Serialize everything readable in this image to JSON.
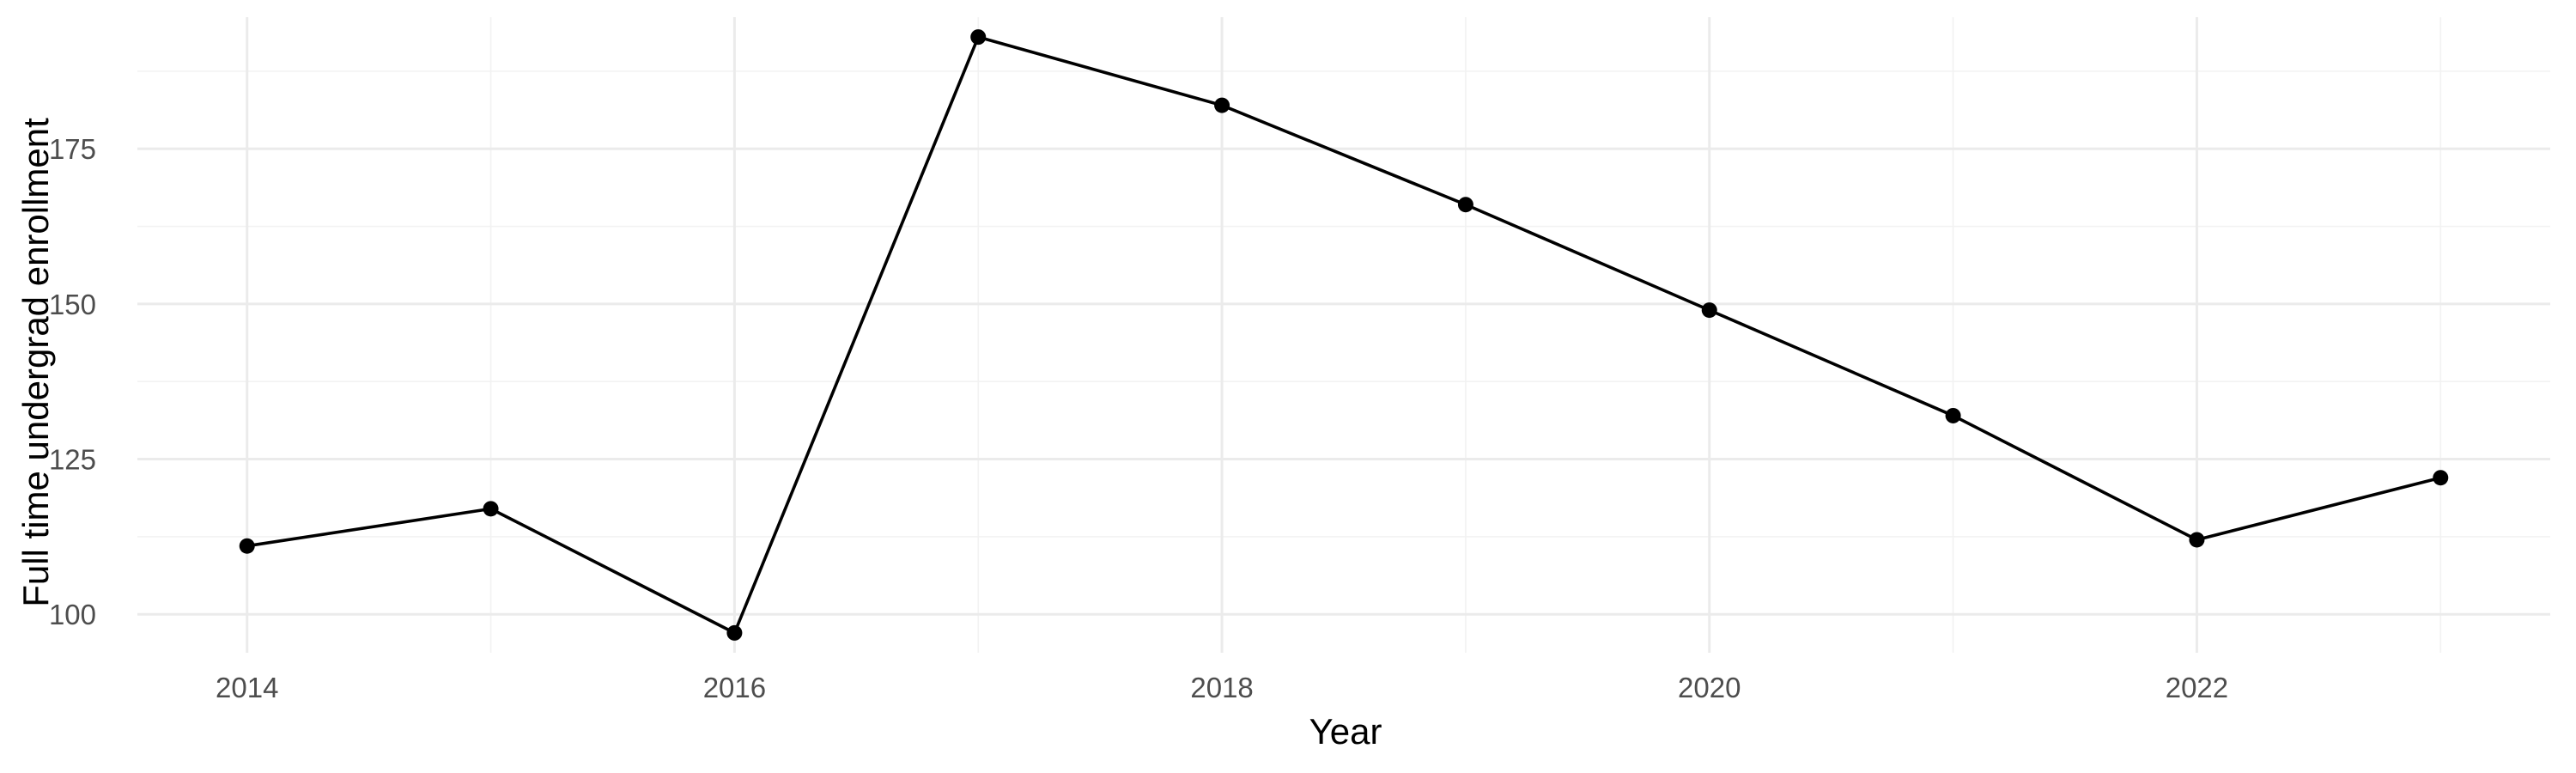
{
  "chart_data": {
    "type": "line",
    "title": "",
    "xlabel": "Year",
    "ylabel": "Full time undergrad enrollment",
    "x": [
      2014,
      2015,
      2016,
      2017,
      2018,
      2019,
      2020,
      2021,
      2022,
      2023
    ],
    "series": [
      {
        "values": [
          111,
          117,
          97,
          193,
          182,
          166,
          149,
          132,
          112,
          122
        ]
      }
    ],
    "xlim": [
      2013.55,
      2023.45
    ],
    "ylim": [
      93.8,
      196.2
    ],
    "x_ticks": [
      2014,
      2016,
      2018,
      2020,
      2022
    ],
    "x_tick_labels": [
      "2014",
      "2016",
      "2018",
      "2020",
      "2022"
    ],
    "y_ticks": [
      100,
      125,
      150,
      175
    ],
    "y_tick_labels": [
      "100",
      "125",
      "150",
      "175"
    ],
    "grid": true,
    "legend": "none",
    "colors": {
      "line": "#000000",
      "point": "#000000",
      "grid_major": "#ebebeb",
      "grid_minor": "#f2f2f2",
      "tick_text": "#4d4d4d"
    }
  }
}
